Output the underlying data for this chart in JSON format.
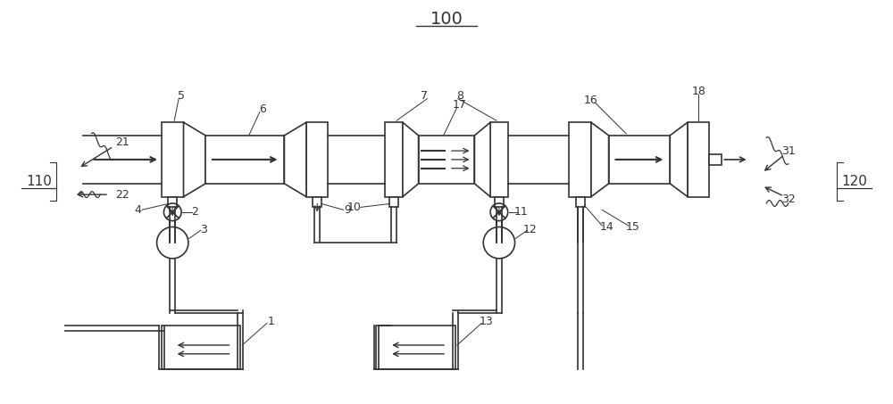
{
  "title": "100",
  "bg_color": "#ffffff",
  "line_color": "#333333",
  "figsize": [
    10.0,
    4.53
  ],
  "dpi": 100
}
